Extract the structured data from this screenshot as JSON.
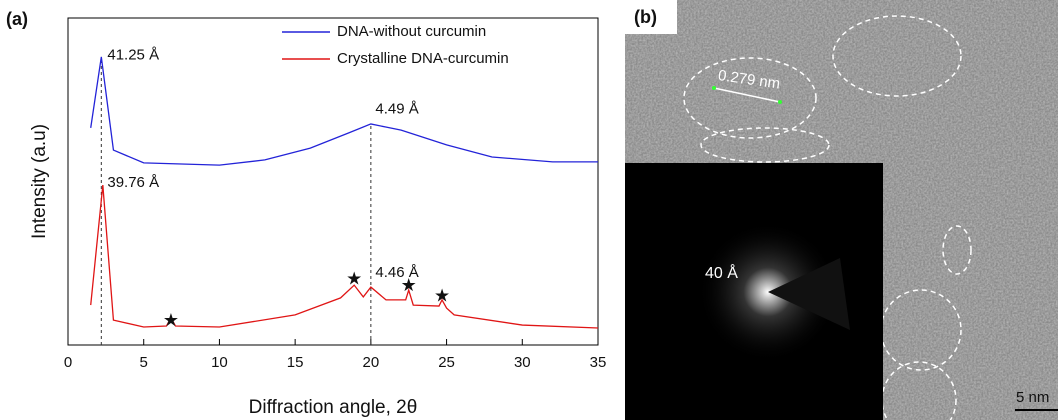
{
  "chart_data": {
    "type": "line",
    "panel_label": "(a)",
    "xlabel": "Diffraction angle, 2θ",
    "ylabel": "Intensity (a.u)",
    "xlim": [
      0,
      35
    ],
    "xticks": [
      0,
      5,
      10,
      15,
      20,
      25,
      30,
      35
    ],
    "ylim": [
      0,
      100
    ],
    "legend": "upper right",
    "series": [
      {
        "name": "DNA-without curcumin",
        "color": "#2323d8",
        "x": [
          1.5,
          2.2,
          3,
          5,
          10,
          13,
          16,
          18.5,
          20,
          22,
          25,
          28,
          32,
          35
        ],
        "values": [
          66.4,
          88.1,
          59.6,
          55.7,
          55.0,
          56.6,
          60.2,
          64.8,
          67.6,
          65.7,
          61.2,
          57.5,
          56.0,
          56.0
        ]
      },
      {
        "name": "Crystalline DNA-curcumin",
        "color": "#e01515",
        "x": [
          1.5,
          2.3,
          3,
          5,
          6.5,
          6.8,
          7.1,
          10,
          15,
          18,
          18.9,
          19.5,
          20,
          21,
          22.3,
          22.5,
          22.8,
          24.5,
          24.7,
          25,
          25.5,
          30,
          35
        ],
        "values": [
          12.2,
          48.9,
          7.6,
          5.5,
          5.8,
          8.3,
          5.8,
          5.5,
          9.2,
          14.4,
          18.3,
          14.7,
          17.7,
          13.8,
          13.8,
          16.8,
          12.2,
          11.9,
          13.8,
          11.3,
          9.2,
          6.1,
          5.2
        ]
      }
    ],
    "reference_lines": [
      {
        "x": 2.2,
        "y": 88.1
      },
      {
        "x": 20,
        "y": 67.6
      }
    ],
    "annotations": [
      {
        "text": "41.25 Å",
        "x": 2.6,
        "y": 88.5
      },
      {
        "text": "4.49 Å",
        "x": 20.3,
        "y": 72
      },
      {
        "text": "39.76 Å",
        "x": 2.6,
        "y": 49.5
      },
      {
        "text": "4.46 Å",
        "x": 20.3,
        "y": 22
      },
      {
        "text": "★",
        "x": 6.8,
        "y": 7.3
      },
      {
        "text": "★",
        "x": 18.9,
        "y": 19.9
      },
      {
        "text": "★",
        "x": 22.5,
        "y": 17.9
      },
      {
        "text": "★",
        "x": 24.7,
        "y": 14.8
      }
    ]
  },
  "image_b": {
    "panel_label": "(b)",
    "lattice_label": "0.279 nm",
    "diffraction_label": "40 Å",
    "scale_bar": "5 nm"
  }
}
